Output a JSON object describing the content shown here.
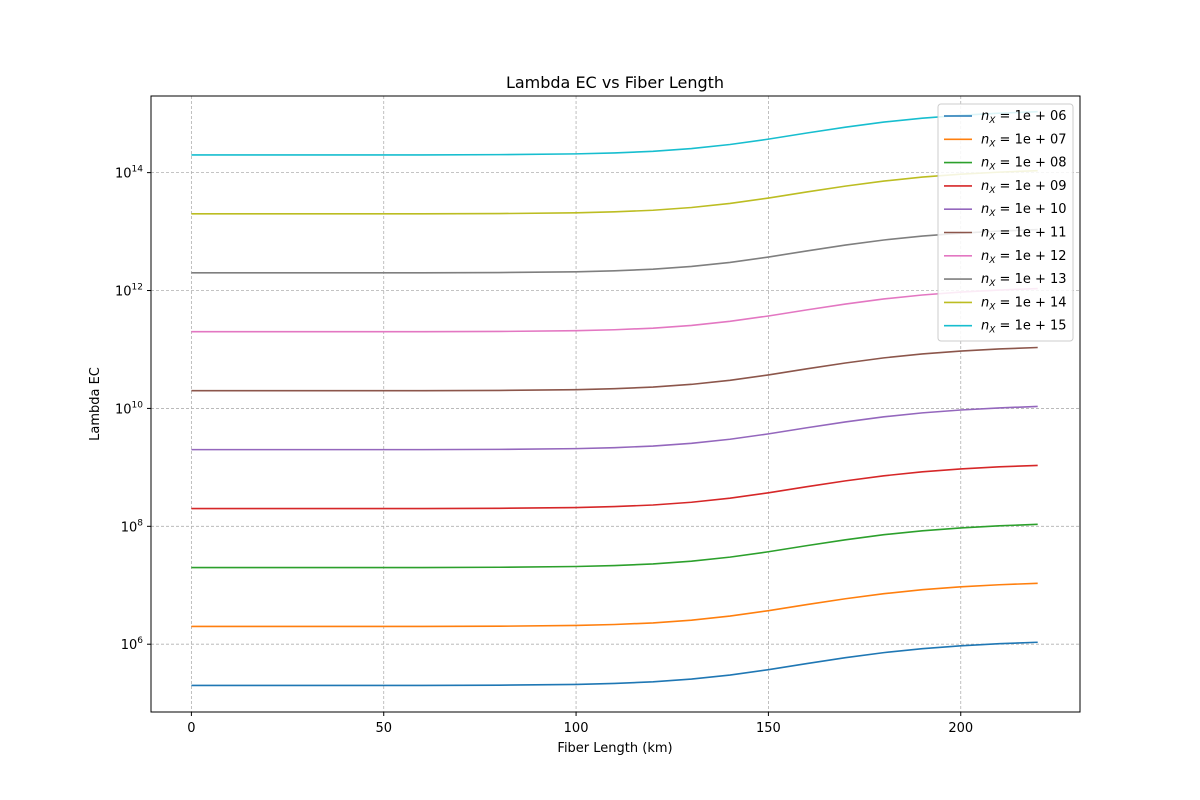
{
  "chart_data": {
    "type": "line",
    "title": "Lambda EC vs Fiber Length",
    "xlabel": "Fiber Length (km)",
    "ylabel": "Lambda EC",
    "yscale": "log",
    "xlim": [
      -10.5,
      231
    ],
    "ylim_log10": [
      4.85,
      15.3
    ],
    "xticks": [
      {
        "value": 0,
        "label": "0"
      },
      {
        "value": 50,
        "label": "50"
      },
      {
        "value": 100,
        "label": "100"
      },
      {
        "value": 150,
        "label": "150"
      },
      {
        "value": 200,
        "label": "200"
      }
    ],
    "yticks": [
      {
        "exp": 6,
        "base": "10",
        "sup": "6"
      },
      {
        "exp": 8,
        "base": "10",
        "sup": "8"
      },
      {
        "exp": 10,
        "base": "10",
        "sup": "10"
      },
      {
        "exp": 12,
        "base": "10",
        "sup": "12"
      },
      {
        "exp": 14,
        "base": "10",
        "sup": "14"
      }
    ],
    "grid": true,
    "legend_position": "top-right",
    "x": [
      0,
      20,
      40,
      60,
      80,
      100,
      110,
      120,
      130,
      140,
      150,
      160,
      170,
      180,
      190,
      200,
      210,
      220
    ],
    "multiplier": [
      1.0,
      1.0,
      1.0,
      1.0,
      1.01,
      1.04,
      1.08,
      1.15,
      1.28,
      1.5,
      1.85,
      2.35,
      2.95,
      3.6,
      4.2,
      4.7,
      5.1,
      5.4
    ],
    "series": [
      {
        "name": "n_X = 1e+06",
        "label_main": "n",
        "label_sub": "X",
        "label_rest": " = 1e + 06",
        "base": 200000.0,
        "color": "#1f77b4"
      },
      {
        "name": "n_X = 1e+07",
        "label_main": "n",
        "label_sub": "X",
        "label_rest": " = 1e + 07",
        "base": 2000000.0,
        "color": "#ff7f0e"
      },
      {
        "name": "n_X = 1e+08",
        "label_main": "n",
        "label_sub": "X",
        "label_rest": " = 1e + 08",
        "base": 20000000.0,
        "color": "#2ca02c"
      },
      {
        "name": "n_X = 1e+09",
        "label_main": "n",
        "label_sub": "X",
        "label_rest": " = 1e + 09",
        "base": 200000000.0,
        "color": "#d62728"
      },
      {
        "name": "n_X = 1e+10",
        "label_main": "n",
        "label_sub": "X",
        "label_rest": " = 1e + 10",
        "base": 2000000000.0,
        "color": "#9467bd"
      },
      {
        "name": "n_X = 1e+11",
        "label_main": "n",
        "label_sub": "X",
        "label_rest": " = 1e + 11",
        "base": 20000000000.0,
        "color": "#8c564b"
      },
      {
        "name": "n_X = 1e+12",
        "label_main": "n",
        "label_sub": "X",
        "label_rest": " = 1e + 12",
        "base": 200000000000.0,
        "color": "#e377c2"
      },
      {
        "name": "n_X = 1e+13",
        "label_main": "n",
        "label_sub": "X",
        "label_rest": " = 1e + 13",
        "base": 2000000000000.0,
        "color": "#7f7f7f"
      },
      {
        "name": "n_X = 1e+14",
        "label_main": "n",
        "label_sub": "X",
        "label_rest": " = 1e + 14",
        "base": 20000000000000.0,
        "color": "#bcbd22"
      },
      {
        "name": "n_X = 1e+15",
        "label_main": "n",
        "label_sub": "X",
        "label_rest": " = 1e + 15",
        "base": 200000000000000.0,
        "color": "#17becf"
      }
    ]
  }
}
